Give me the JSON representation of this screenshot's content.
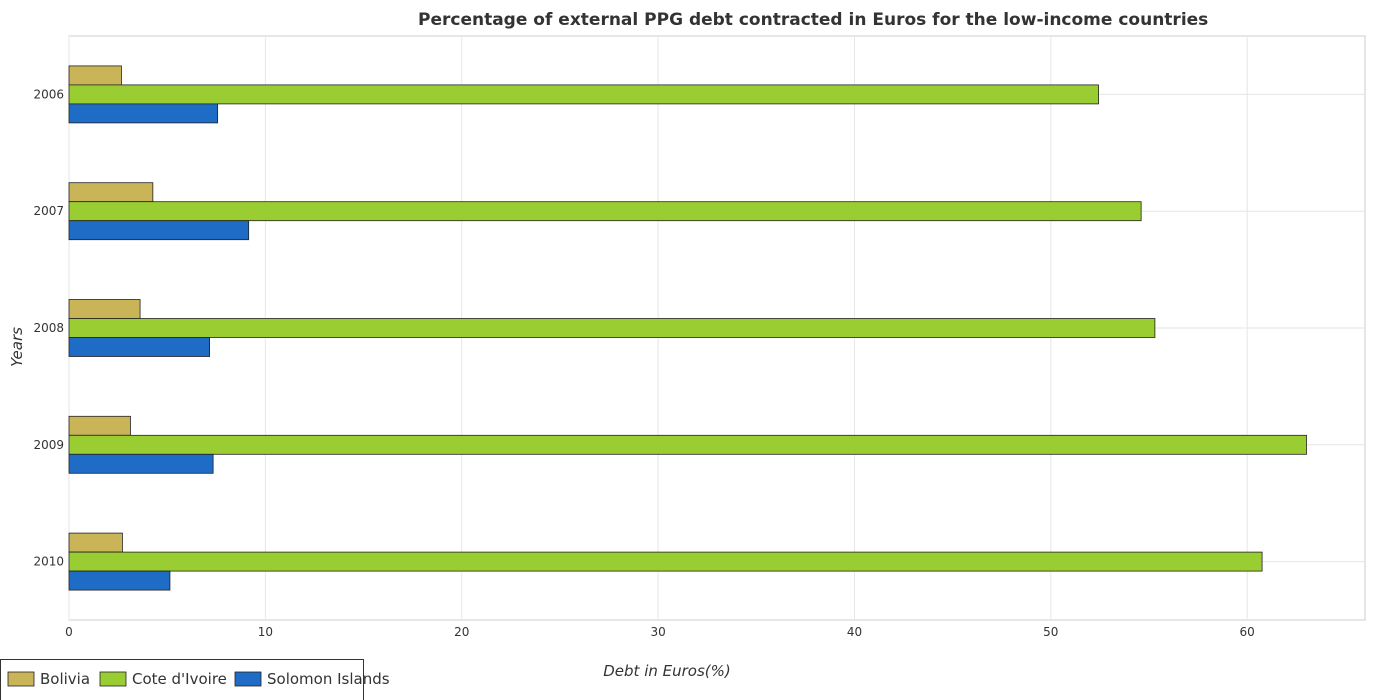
{
  "chart_data": {
    "type": "bar",
    "orientation": "horizontal",
    "title": "Percentage of external PPG debt contracted in Euros for the low-income countries",
    "xlabel": "Debt in Euros(%)",
    "ylabel": "Years",
    "xlim": [
      0,
      66
    ],
    "xticks": [
      0,
      10,
      20,
      30,
      40,
      50,
      60
    ],
    "xtick_labels": [
      "0",
      "10",
      "20",
      "30",
      "40",
      "50",
      "60"
    ],
    "categories": [
      "2006",
      "2007",
      "2008",
      "2009",
      "2010"
    ],
    "series": [
      {
        "name": "Bolivia",
        "color": "#c9b458",
        "values": [
          2.67,
          4.27,
          3.62,
          3.13,
          2.72
        ]
      },
      {
        "name": "Cote d'Ivoire",
        "color": "#9acd32",
        "values": [
          52.43,
          54.6,
          55.3,
          63.02,
          60.76
        ]
      },
      {
        "name": "Solomon Islands",
        "color": "#1e6cc5",
        "values": [
          7.57,
          9.15,
          7.16,
          7.34,
          5.14
        ]
      }
    ],
    "grid": true,
    "legend_position": "bottom-left"
  }
}
